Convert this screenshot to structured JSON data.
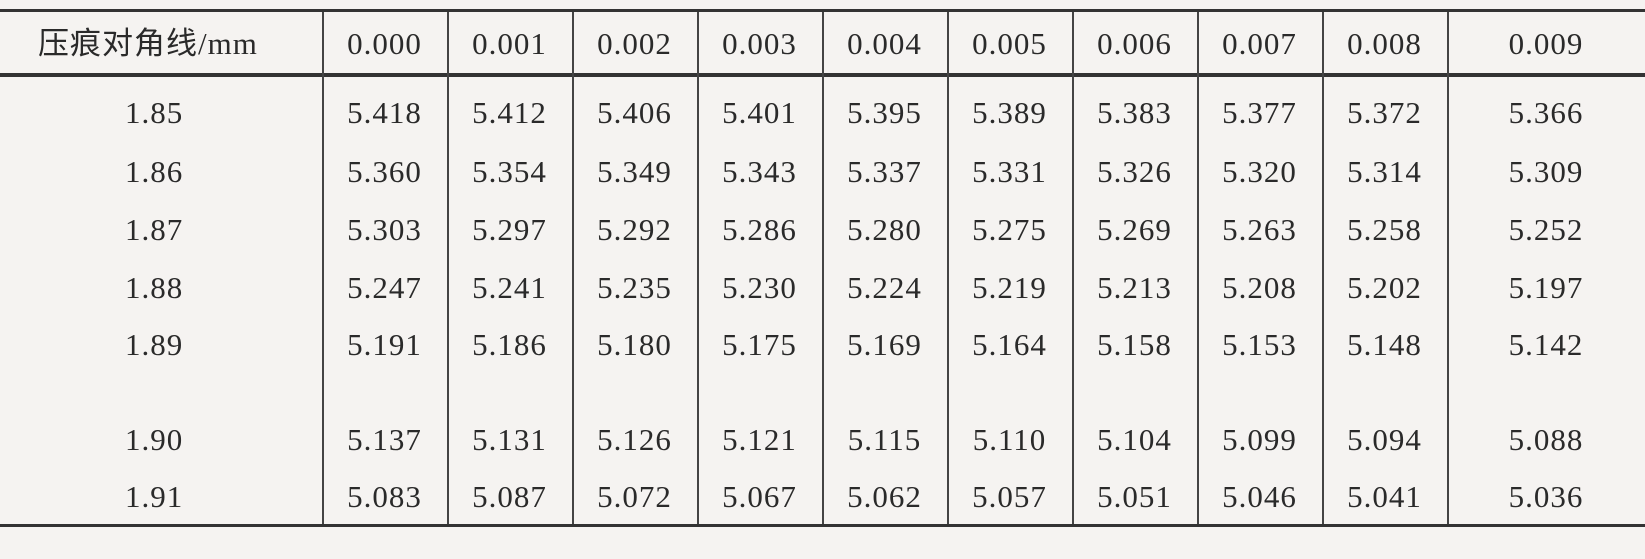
{
  "table": {
    "header": [
      "压痕对角线/mm",
      "0.000",
      "0.001",
      "0.002",
      "0.003",
      "0.004",
      "0.005",
      "0.006",
      "0.007",
      "0.008",
      "0.009"
    ],
    "rows": [
      [
        "1.85",
        "5.418",
        "5.412",
        "5.406",
        "5.401",
        "5.395",
        "5.389",
        "5.383",
        "5.377",
        "5.372",
        "5.366"
      ],
      [
        "1.86",
        "5.360",
        "5.354",
        "5.349",
        "5.343",
        "5.337",
        "5.331",
        "5.326",
        "5.320",
        "5.314",
        "5.309"
      ],
      [
        "1.87",
        "5.303",
        "5.297",
        "5.292",
        "5.286",
        "5.280",
        "5.275",
        "5.269",
        "5.263",
        "5.258",
        "5.252"
      ],
      [
        "1.88",
        "5.247",
        "5.241",
        "5.235",
        "5.230",
        "5.224",
        "5.219",
        "5.213",
        "5.208",
        "5.202",
        "5.197"
      ],
      [
        "1.89",
        "5.191",
        "5.186",
        "5.180",
        "5.175",
        "5.169",
        "5.164",
        "5.158",
        "5.153",
        "5.148",
        "5.142"
      ],
      [
        "1.90",
        "5.137",
        "5.131",
        "5.126",
        "5.121",
        "5.115",
        "5.110",
        "5.104",
        "5.099",
        "5.094",
        "5.088"
      ],
      [
        "1.91",
        "5.083",
        "5.087",
        "5.072",
        "5.067",
        "5.062",
        "5.057",
        "5.051",
        "5.046",
        "5.041",
        "5.036"
      ]
    ]
  }
}
